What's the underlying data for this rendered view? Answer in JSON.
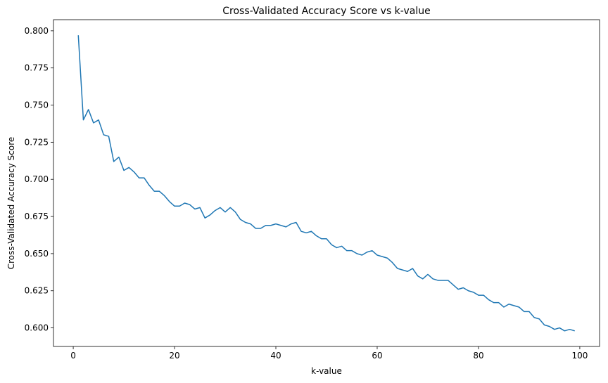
{
  "chart_data": {
    "type": "line",
    "title": "Cross-Validated Accuracy Score vs k-value",
    "xlabel": "k-value",
    "ylabel": "Cross-Validated Accuracy Score",
    "xlim": [
      -3.9,
      103.9
    ],
    "ylim": [
      0.5875,
      0.8075
    ],
    "xticks": [
      0,
      20,
      40,
      60,
      80,
      100
    ],
    "yticks": [
      0.6,
      0.625,
      0.65,
      0.675,
      0.7,
      0.725,
      0.75,
      0.775,
      0.8
    ],
    "ytick_labels": [
      "0.600",
      "0.625",
      "0.650",
      "0.675",
      "0.700",
      "0.725",
      "0.750",
      "0.775",
      "0.800"
    ],
    "grid": false,
    "line_color": "#1f77b4",
    "series": [
      {
        "x": [
          1,
          2,
          3,
          4,
          5,
          6,
          7,
          8,
          9,
          10,
          11,
          12,
          13,
          14,
          15,
          16,
          17,
          18,
          19,
          20,
          21,
          22,
          23,
          24,
          25,
          26,
          27,
          28,
          29,
          30,
          31,
          32,
          33,
          34,
          35,
          36,
          37,
          38,
          39,
          40,
          41,
          42,
          43,
          44,
          45,
          46,
          47,
          48,
          49,
          50,
          51,
          52,
          53,
          54,
          55,
          56,
          57,
          58,
          59,
          60,
          61,
          62,
          63,
          64,
          65,
          66,
          67,
          68,
          69,
          70,
          71,
          72,
          73,
          74,
          75,
          76,
          77,
          78,
          79,
          80,
          81,
          82,
          83,
          84,
          85,
          86,
          87,
          88,
          89,
          90,
          91,
          92,
          93,
          94,
          95,
          96,
          97,
          98,
          99
        ],
        "values": [
          0.797,
          0.74,
          0.747,
          0.738,
          0.74,
          0.73,
          0.729,
          0.712,
          0.715,
          0.706,
          0.708,
          0.705,
          0.701,
          0.701,
          0.696,
          0.692,
          0.692,
          0.689,
          0.685,
          0.682,
          0.682,
          0.684,
          0.683,
          0.68,
          0.681,
          0.674,
          0.676,
          0.679,
          0.681,
          0.678,
          0.681,
          0.678,
          0.673,
          0.671,
          0.67,
          0.667,
          0.667,
          0.669,
          0.669,
          0.67,
          0.669,
          0.668,
          0.67,
          0.671,
          0.665,
          0.664,
          0.665,
          0.662,
          0.66,
          0.66,
          0.656,
          0.654,
          0.655,
          0.652,
          0.652,
          0.65,
          0.649,
          0.651,
          0.652,
          0.649,
          0.648,
          0.647,
          0.644,
          0.64,
          0.639,
          0.638,
          0.64,
          0.635,
          0.633,
          0.636,
          0.633,
          0.632,
          0.632,
          0.632,
          0.629,
          0.626,
          0.627,
          0.625,
          0.624,
          0.622,
          0.622,
          0.619,
          0.617,
          0.617,
          0.614,
          0.616,
          0.615,
          0.614,
          0.611,
          0.611,
          0.607,
          0.606,
          0.602,
          0.601,
          0.599,
          0.6,
          0.598,
          0.599,
          0.598
        ]
      }
    ]
  }
}
